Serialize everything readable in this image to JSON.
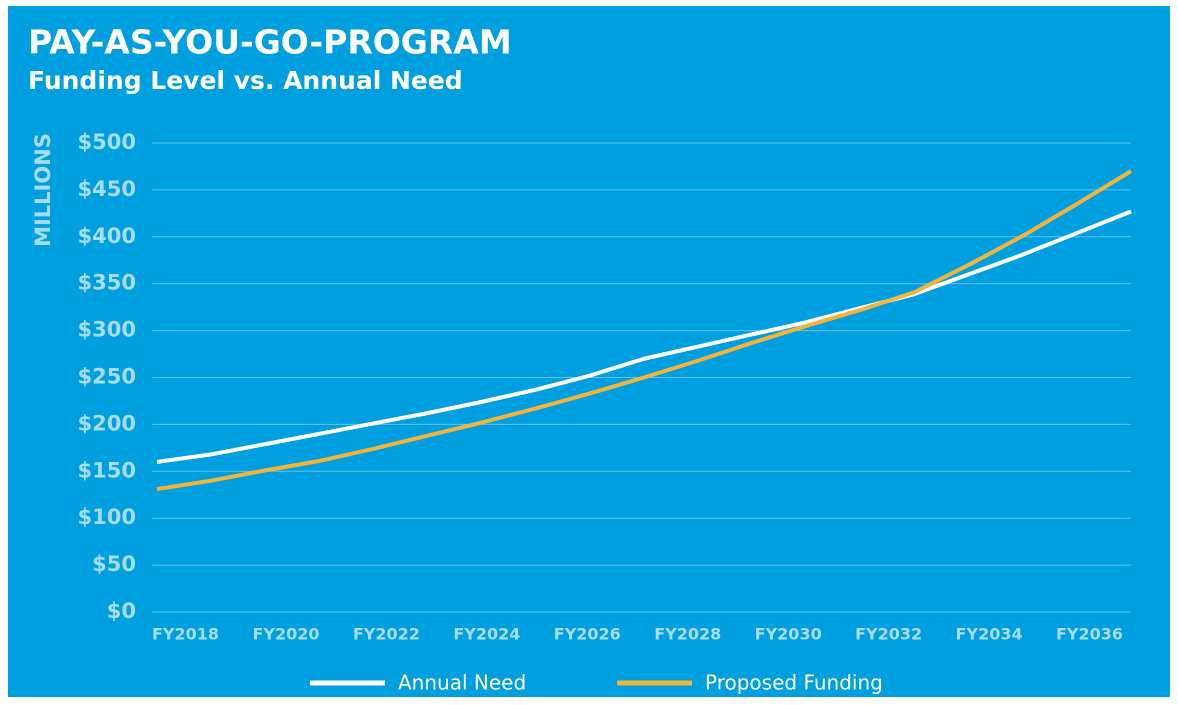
{
  "chart_data": {
    "type": "line",
    "title": "PAY-AS-YOU-GO-PROGRAM",
    "subtitle": "Funding Level vs. Annual Need",
    "y_axis_label": "MILLIONS",
    "categories": [
      "FY2018",
      null,
      "FY2020",
      null,
      "FY2022",
      null,
      "FY2024",
      null,
      "FY2026",
      null,
      "FY2028",
      null,
      "FY2030",
      null,
      "FY2032",
      null,
      "FY2034",
      null,
      "FY2036"
    ],
    "series": [
      {
        "name": "Annual Need",
        "color": "#ffffff",
        "values": [
          160,
          168,
          179,
          190,
          201,
          212,
          224,
          237,
          252,
          270,
          283,
          296,
          309,
          324,
          339,
          360,
          381,
          404,
          427
        ]
      },
      {
        "name": "Proposed Funding",
        "color": "#f4b43c",
        "values": [
          131,
          140,
          151,
          161,
          174,
          188,
          202,
          217,
          233,
          250,
          268,
          287,
          305,
          322,
          341,
          370,
          401,
          435,
          470
        ]
      }
    ],
    "ylim": [
      0,
      500
    ],
    "yticks": [
      {
        "value": 0,
        "label": "$0"
      },
      {
        "value": 50,
        "label": "$50"
      },
      {
        "value": 100,
        "label": "$100"
      },
      {
        "value": 150,
        "label": "$150"
      },
      {
        "value": 200,
        "label": "$200"
      },
      {
        "value": 250,
        "label": "$250"
      },
      {
        "value": 300,
        "label": "$300"
      },
      {
        "value": 350,
        "label": "$350"
      },
      {
        "value": 400,
        "label": "$400"
      },
      {
        "value": 450,
        "label": "$450"
      },
      {
        "value": 500,
        "label": "$500"
      }
    ],
    "grid": true,
    "legend": "bottom"
  }
}
